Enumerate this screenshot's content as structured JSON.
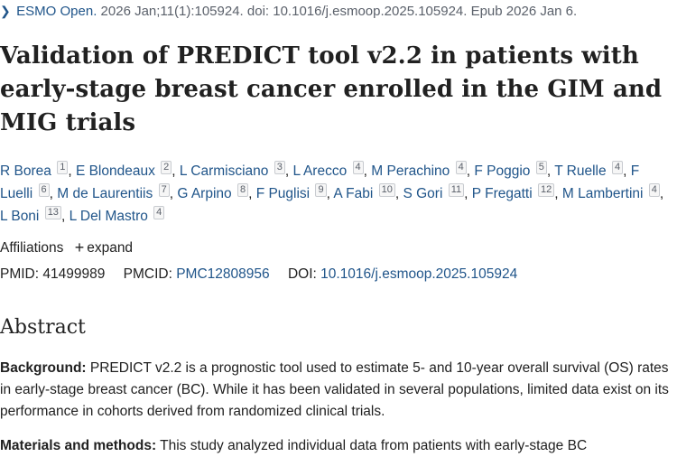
{
  "citation": {
    "icon": "chevron-right-icon",
    "journal": "ESMO Open.",
    "rest": " 2026 Jan;11(1):105924. doi: 10.1016/j.esmoop.2025.105924. Epub 2026 Jan 6."
  },
  "title": "Validation of PREDICT tool v2.2 in patients with early-stage breast cancer enrolled in the GIM and MIG trials",
  "authors": [
    {
      "name": "R Borea",
      "aff": "1"
    },
    {
      "name": "E Blondeaux",
      "aff": "2"
    },
    {
      "name": "L Carmisciano",
      "aff": "3"
    },
    {
      "name": "L Arecco",
      "aff": "4"
    },
    {
      "name": "M Perachino",
      "aff": "4"
    },
    {
      "name": "F Poggio",
      "aff": "5"
    },
    {
      "name": "T Ruelle",
      "aff": "4"
    },
    {
      "name": "F Luelli",
      "aff": "6"
    },
    {
      "name": "M de Laurentiis",
      "aff": "7"
    },
    {
      "name": "G Arpino",
      "aff": "8"
    },
    {
      "name": "F Puglisi",
      "aff": "9"
    },
    {
      "name": "A Fabi",
      "aff": "10"
    },
    {
      "name": "S Gori",
      "aff": "11"
    },
    {
      "name": "P Fregatti",
      "aff": "12"
    },
    {
      "name": "M Lambertini",
      "aff": "4"
    },
    {
      "name": "L Boni",
      "aff": "13"
    },
    {
      "name": "L Del Mastro",
      "aff": "4"
    }
  ],
  "affiliations": {
    "label": "Affiliations",
    "expand_icon": "plus-icon",
    "expand_label": "expand"
  },
  "ids": {
    "pmid_label": "PMID:",
    "pmid": "41499989",
    "pmcid_label": "PMCID:",
    "pmcid": "PMC12808956",
    "doi_label": "DOI:",
    "doi": "10.1016/j.esmoop.2025.105924"
  },
  "abstract": {
    "heading": "Abstract",
    "background_label": "Background:",
    "background_text": " PREDICT v2.2 is a prognostic tool used to estimate 5- and 10-year overall survival (OS) rates in early-stage breast cancer (BC). While it has been validated in several populations, limited data exist on its performance in cohorts derived from randomized clinical trials.",
    "methods_label": "Materials and methods:",
    "methods_text": " This study analyzed individual data from patients with early-stage BC"
  },
  "colors": {
    "link": "#20558a",
    "text": "#212121",
    "muted": "#5b616b"
  }
}
